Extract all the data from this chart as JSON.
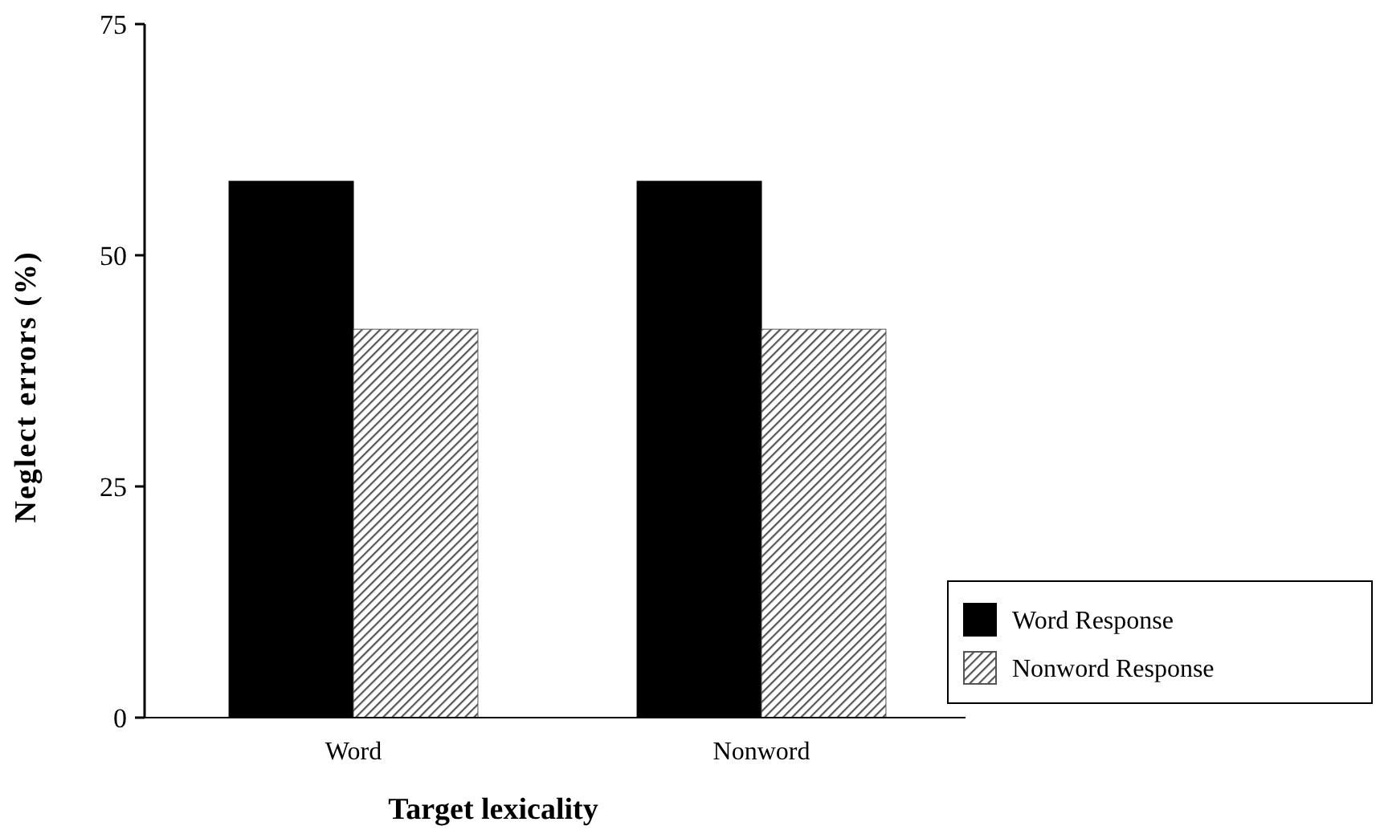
{
  "chart_data": {
    "type": "bar",
    "xlabel": "Target lexicality",
    "ylabel": "Neglect errors (%)",
    "categories": [
      "Word",
      "Nonword"
    ],
    "series": [
      {
        "name": "Word Response",
        "color": "#000000",
        "values": [
          58,
          58
        ]
      },
      {
        "name": "Nonword Response",
        "color": "#555555",
        "values": [
          42,
          42
        ]
      }
    ],
    "ylim": [
      0,
      75
    ],
    "yticks": [
      0,
      25,
      50,
      75
    ],
    "grid": false,
    "legend": "bottom right"
  }
}
